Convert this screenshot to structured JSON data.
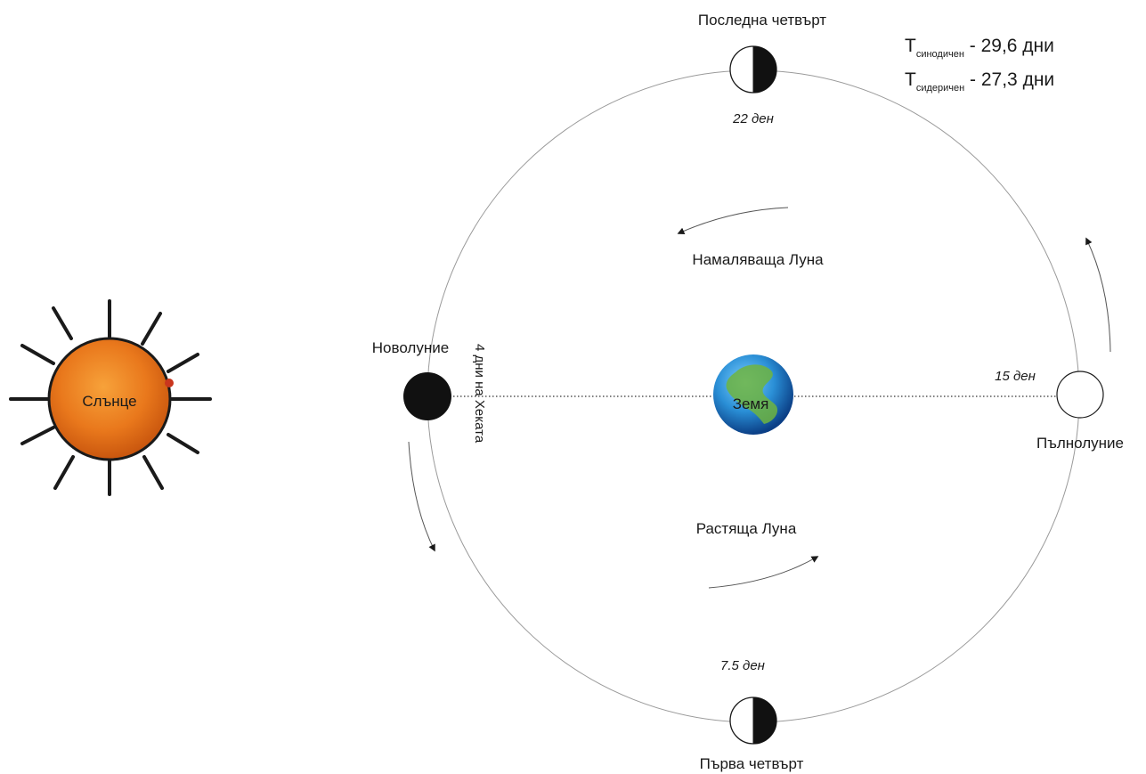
{
  "sun": {
    "label": "Слънце"
  },
  "earth": {
    "label": "Земя"
  },
  "phases": {
    "last_quarter": {
      "label": "Последна четвърт",
      "day": "22 ден"
    },
    "new_moon": {
      "label": "Новолуние",
      "note": "4 дни на Хеката"
    },
    "full_moon": {
      "label": "Пълнолуние",
      "day": "15 ден"
    },
    "first_quarter": {
      "label": "Първа четвърт",
      "day": "7.5 ден"
    }
  },
  "waning_label": "Намаляваща Луна",
  "waxing_label": "Растяща Луна",
  "periods": {
    "synodic": {
      "symbol": "T",
      "subscript": "синодичен",
      "value": " - 29,6 дни"
    },
    "sidereal": {
      "symbol": "T",
      "subscript": "сидеричен",
      "value": " - 27,3 дни"
    }
  }
}
